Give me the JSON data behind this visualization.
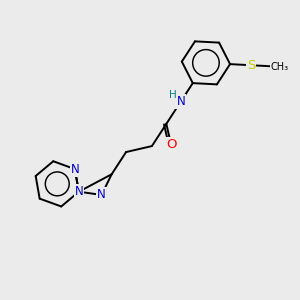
{
  "background_color": "#ebebeb",
  "bond_color": "#000000",
  "atom_colors": {
    "N": "#0000cc",
    "O": "#ff0000",
    "S": "#cccc00",
    "H": "#008080",
    "C": "#000000"
  },
  "font_size": 8.5,
  "linewidth": 1.4,
  "figsize": [
    3.0,
    3.0
  ],
  "dpi": 100
}
